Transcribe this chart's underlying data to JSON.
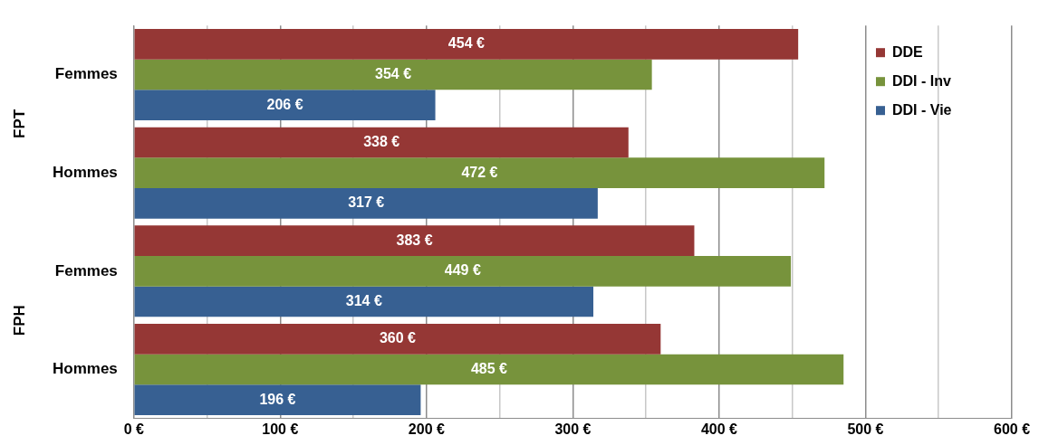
{
  "chart_data": {
    "type": "bar",
    "orientation": "horizontal",
    "categories": [
      "Femmes",
      "Hommes",
      "Femmes",
      "Hommes"
    ],
    "series": [
      {
        "name": "DDE",
        "color": "#953735",
        "values": [
          454,
          338,
          383,
          360
        ],
        "value_labels": [
          "454 €",
          "338 €",
          "383 €",
          "360 €"
        ]
      },
      {
        "name": "DDI - Inv",
        "color": "#77933c",
        "values": [
          354,
          472,
          449,
          485
        ],
        "value_labels": [
          "354 €",
          "472 €",
          "449 €",
          "485 €"
        ]
      },
      {
        "name": "DDI - Vie",
        "color": "#376092",
        "values": [
          206,
          317,
          314,
          196
        ],
        "value_labels": [
          "206 €",
          "317 €",
          "314 €",
          "196 €"
        ]
      }
    ],
    "annotations": [
      "FPT",
      "FPH"
    ],
    "xlim": [
      0,
      600
    ],
    "xticks": [
      {
        "value": 0,
        "label": "0 €"
      },
      {
        "value": 50,
        "label": null
      },
      {
        "value": 100,
        "label": "100 €"
      },
      {
        "value": 150,
        "label": null
      },
      {
        "value": 200,
        "label": "200 €"
      },
      {
        "value": 250,
        "label": null
      },
      {
        "value": 300,
        "label": "300 €"
      },
      {
        "value": 350,
        "label": null
      },
      {
        "value": 400,
        "label": "400 €"
      },
      {
        "value": 450,
        "label": null
      },
      {
        "value": 500,
        "label": "500 €"
      },
      {
        "value": 550,
        "label": null
      },
      {
        "value": 600,
        "label": "600 €"
      }
    ],
    "grid": "x",
    "legend": "top right"
  }
}
